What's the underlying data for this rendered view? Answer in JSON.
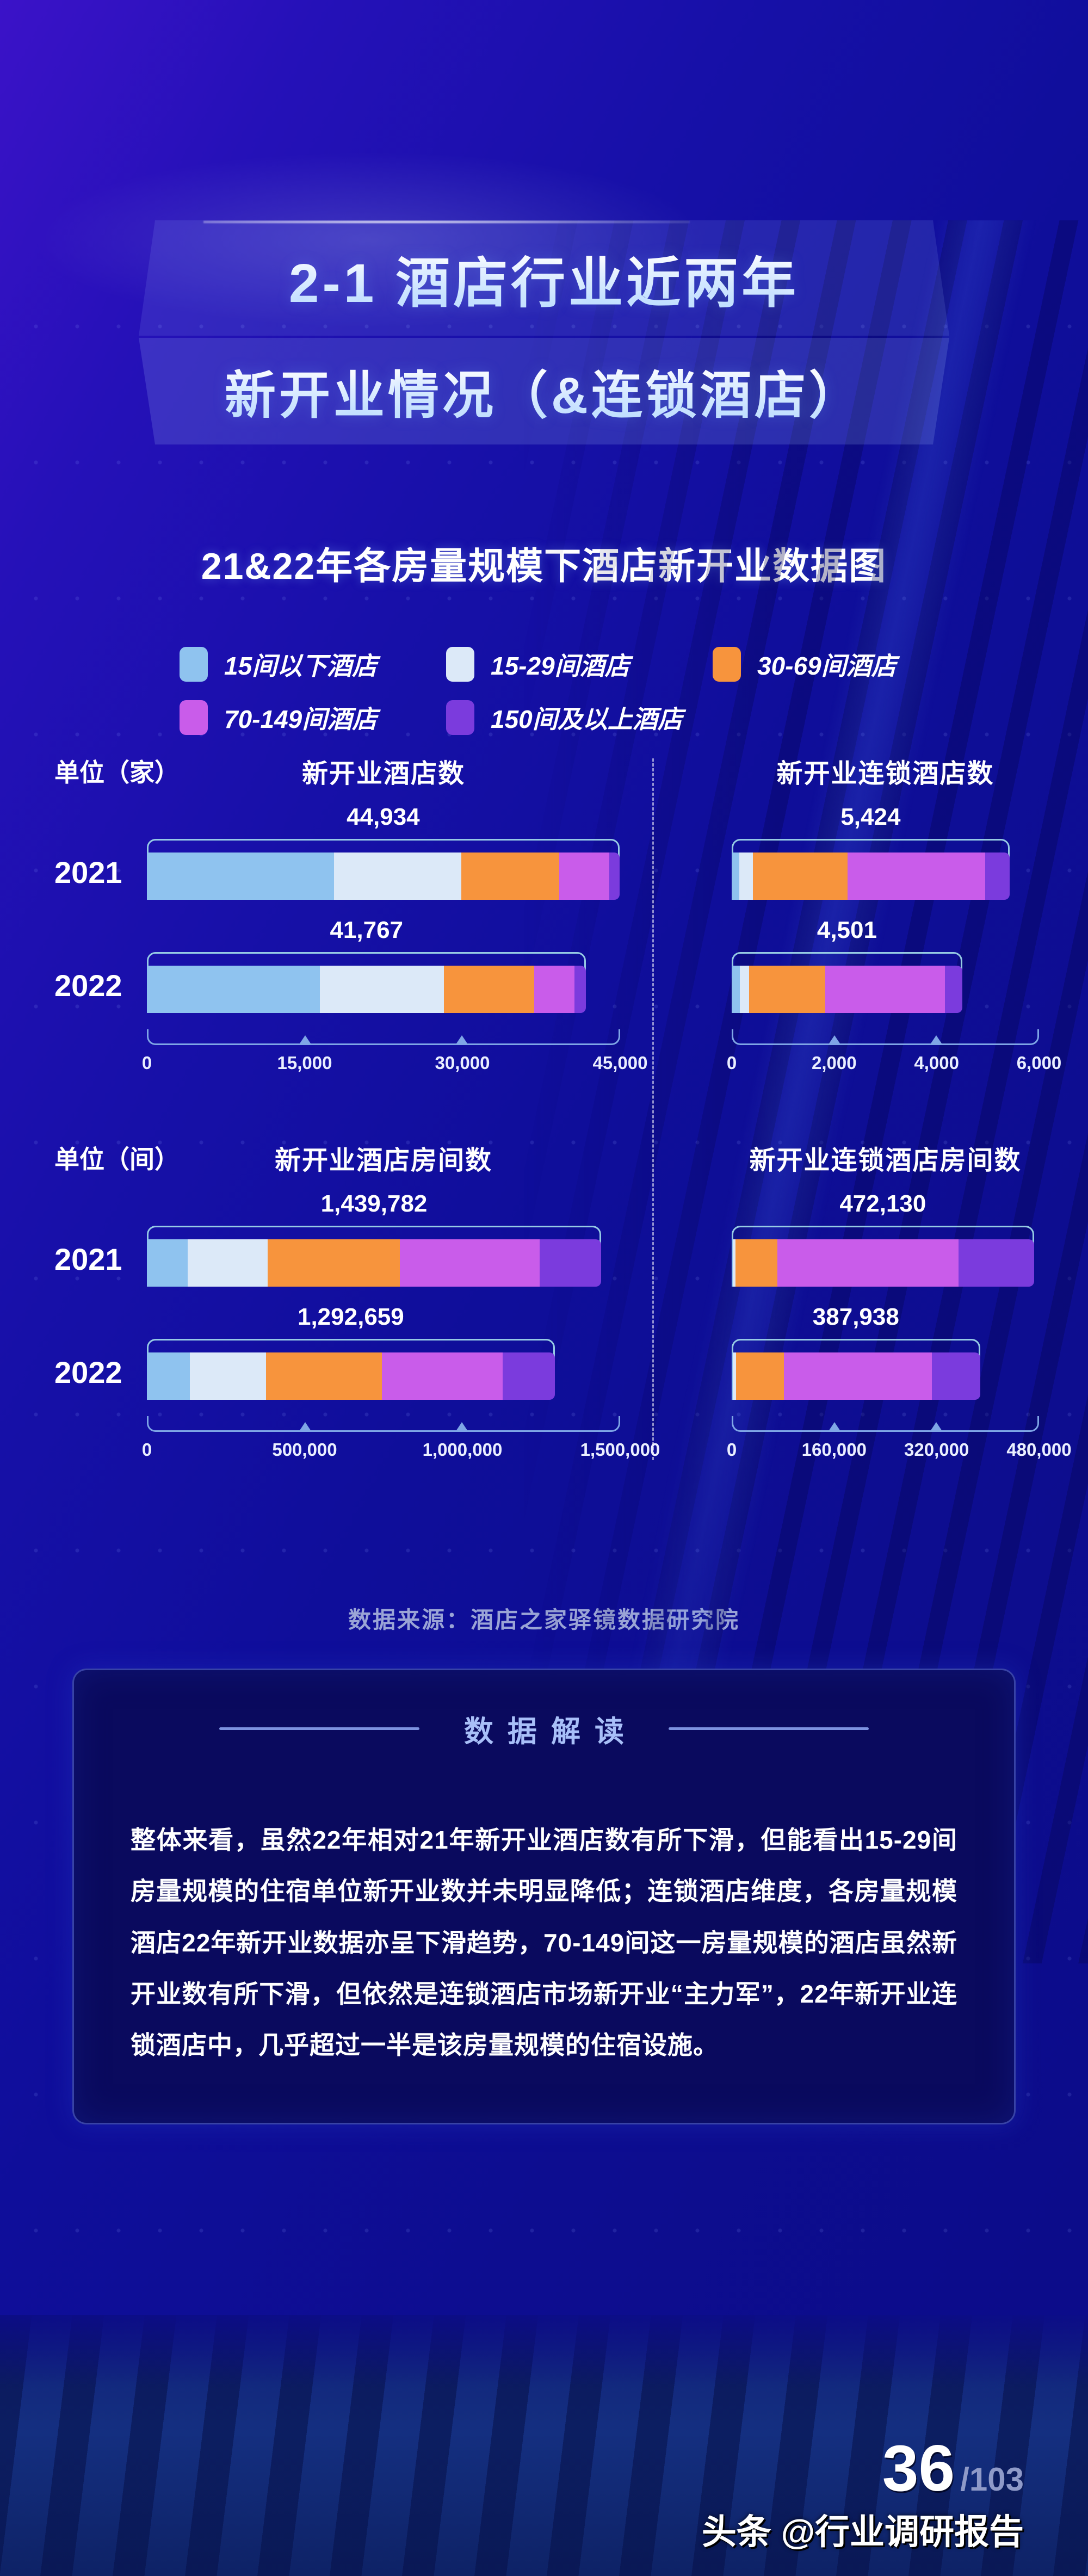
{
  "banner": {
    "line1": "2-1 酒店行业近两年",
    "line2": "新开业情况（&连锁酒店）"
  },
  "section_title": "21&22年各房量规模下酒店新开业数据图",
  "legend": {
    "items": [
      {
        "label": "15间以下酒店",
        "color": "#8fc3ef"
      },
      {
        "label": "15-29间酒店",
        "color": "#dce9f8"
      },
      {
        "label": "30-69间酒店",
        "color": "#f7943d"
      },
      {
        "label": "70-149间酒店",
        "color": "#c95cea"
      },
      {
        "label": "150间及以上酒店",
        "color": "#7b3bdd"
      }
    ]
  },
  "chart_data": [
    {
      "type": "bar",
      "subtype": "horizontal-stacked",
      "id": "new-hotels",
      "unit_label": "单位（家）",
      "title": "新开业酒店数",
      "categories": [
        "2021",
        "2022"
      ],
      "series": [
        {
          "name": "15间以下酒店",
          "values": [
            17800,
            16470
          ]
        },
        {
          "name": "15-29间酒店",
          "values": [
            12100,
            11790
          ]
        },
        {
          "name": "30-69间酒店",
          "values": [
            9300,
            8550
          ]
        },
        {
          "name": "70-149间酒店",
          "values": [
            4780,
            3830
          ]
        },
        {
          "name": "150间及以上酒店",
          "values": [
            954,
            1127
          ]
        }
      ],
      "totals": [
        44934,
        41767
      ],
      "total_labels": [
        "44,934",
        "41,767"
      ],
      "x_ticks": [
        "0",
        "15,000",
        "30,000",
        "45,000"
      ],
      "x_max": 45000
    },
    {
      "type": "bar",
      "subtype": "horizontal-stacked",
      "id": "new-chain-hotels",
      "unit_label": "",
      "title": "新开业连锁酒店数",
      "categories": [
        "2021",
        "2022"
      ],
      "series": [
        {
          "name": "15间以下酒店",
          "values": [
            150,
            160
          ]
        },
        {
          "name": "15-29间酒店",
          "values": [
            265,
            175
          ]
        },
        {
          "name": "30-69间酒店",
          "values": [
            1850,
            1495
          ]
        },
        {
          "name": "70-149间酒店",
          "values": [
            2680,
            2335
          ]
        },
        {
          "name": "150间及以上酒店",
          "values": [
            479,
            336
          ]
        }
      ],
      "totals": [
        5424,
        4501
      ],
      "total_labels": [
        "5,424",
        "4,501"
      ],
      "x_ticks": [
        "0",
        "2,000",
        "4,000",
        "6,000"
      ],
      "x_max": 6000
    },
    {
      "type": "bar",
      "subtype": "horizontal-stacked",
      "id": "new-hotel-rooms",
      "unit_label": "单位（间）",
      "title": "新开业酒店房间数",
      "categories": [
        "2021",
        "2022"
      ],
      "series": [
        {
          "name": "15间以下酒店",
          "values": [
            130000,
            137000
          ]
        },
        {
          "name": "15-29间酒店",
          "values": [
            252000,
            240000
          ]
        },
        {
          "name": "30-69间酒店",
          "values": [
            419000,
            368000
          ]
        },
        {
          "name": "70-149间酒店",
          "values": [
            444000,
            382000
          ]
        },
        {
          "name": "150间及以上酒店",
          "values": [
            194782,
            165659
          ]
        }
      ],
      "totals": [
        1439782,
        1292659
      ],
      "total_labels": [
        "1,439,782",
        "1,292,659"
      ],
      "x_ticks": [
        "0",
        "500,000",
        "1,000,000",
        "1,500,000"
      ],
      "x_max": 1500000
    },
    {
      "type": "bar",
      "subtype": "horizontal-stacked",
      "id": "new-chain-hotel-rooms",
      "unit_label": "",
      "title": "新开业连锁酒店房间数",
      "categories": [
        "2021",
        "2022"
      ],
      "series": [
        {
          "name": "15间以下酒店",
          "values": [
            2000,
            2000
          ]
        },
        {
          "name": "15-29间酒店",
          "values": [
            4000,
            4400
          ]
        },
        {
          "name": "30-69间酒店",
          "values": [
            65400,
            75000
          ]
        },
        {
          "name": "70-149间酒店",
          "values": [
            282730,
            231538
          ]
        },
        {
          "name": "150间及以上酒店",
          "values": [
            118000,
            75000
          ]
        }
      ],
      "totals": [
        472130,
        387938
      ],
      "total_labels": [
        "472,130",
        "387,938"
      ],
      "x_ticks": [
        "0",
        "160,000",
        "320,000",
        "480,000"
      ],
      "x_max": 480000
    }
  ],
  "source": "数据来源：酒店之家驿镜数据研究院",
  "insight": {
    "title": "数据解读",
    "body": "整体来看，虽然22年相对21年新开业酒店数有所下滑，但能看出15-29间房量规模的住宿单位新开业数并未明显降低；连锁酒店维度，各房量规模酒店22年新开业数据亦呈下滑趋势，70-149间这一房量规模的酒店虽然新开业数有所下滑，但依然是连锁酒店市场新开业“主力军”，22年新开业连锁酒店中，几乎超过一半是该房量规模的住宿设施。"
  },
  "footer": {
    "page": "36",
    "page_total": "/103",
    "credit": "头条 @行业调研报告"
  }
}
